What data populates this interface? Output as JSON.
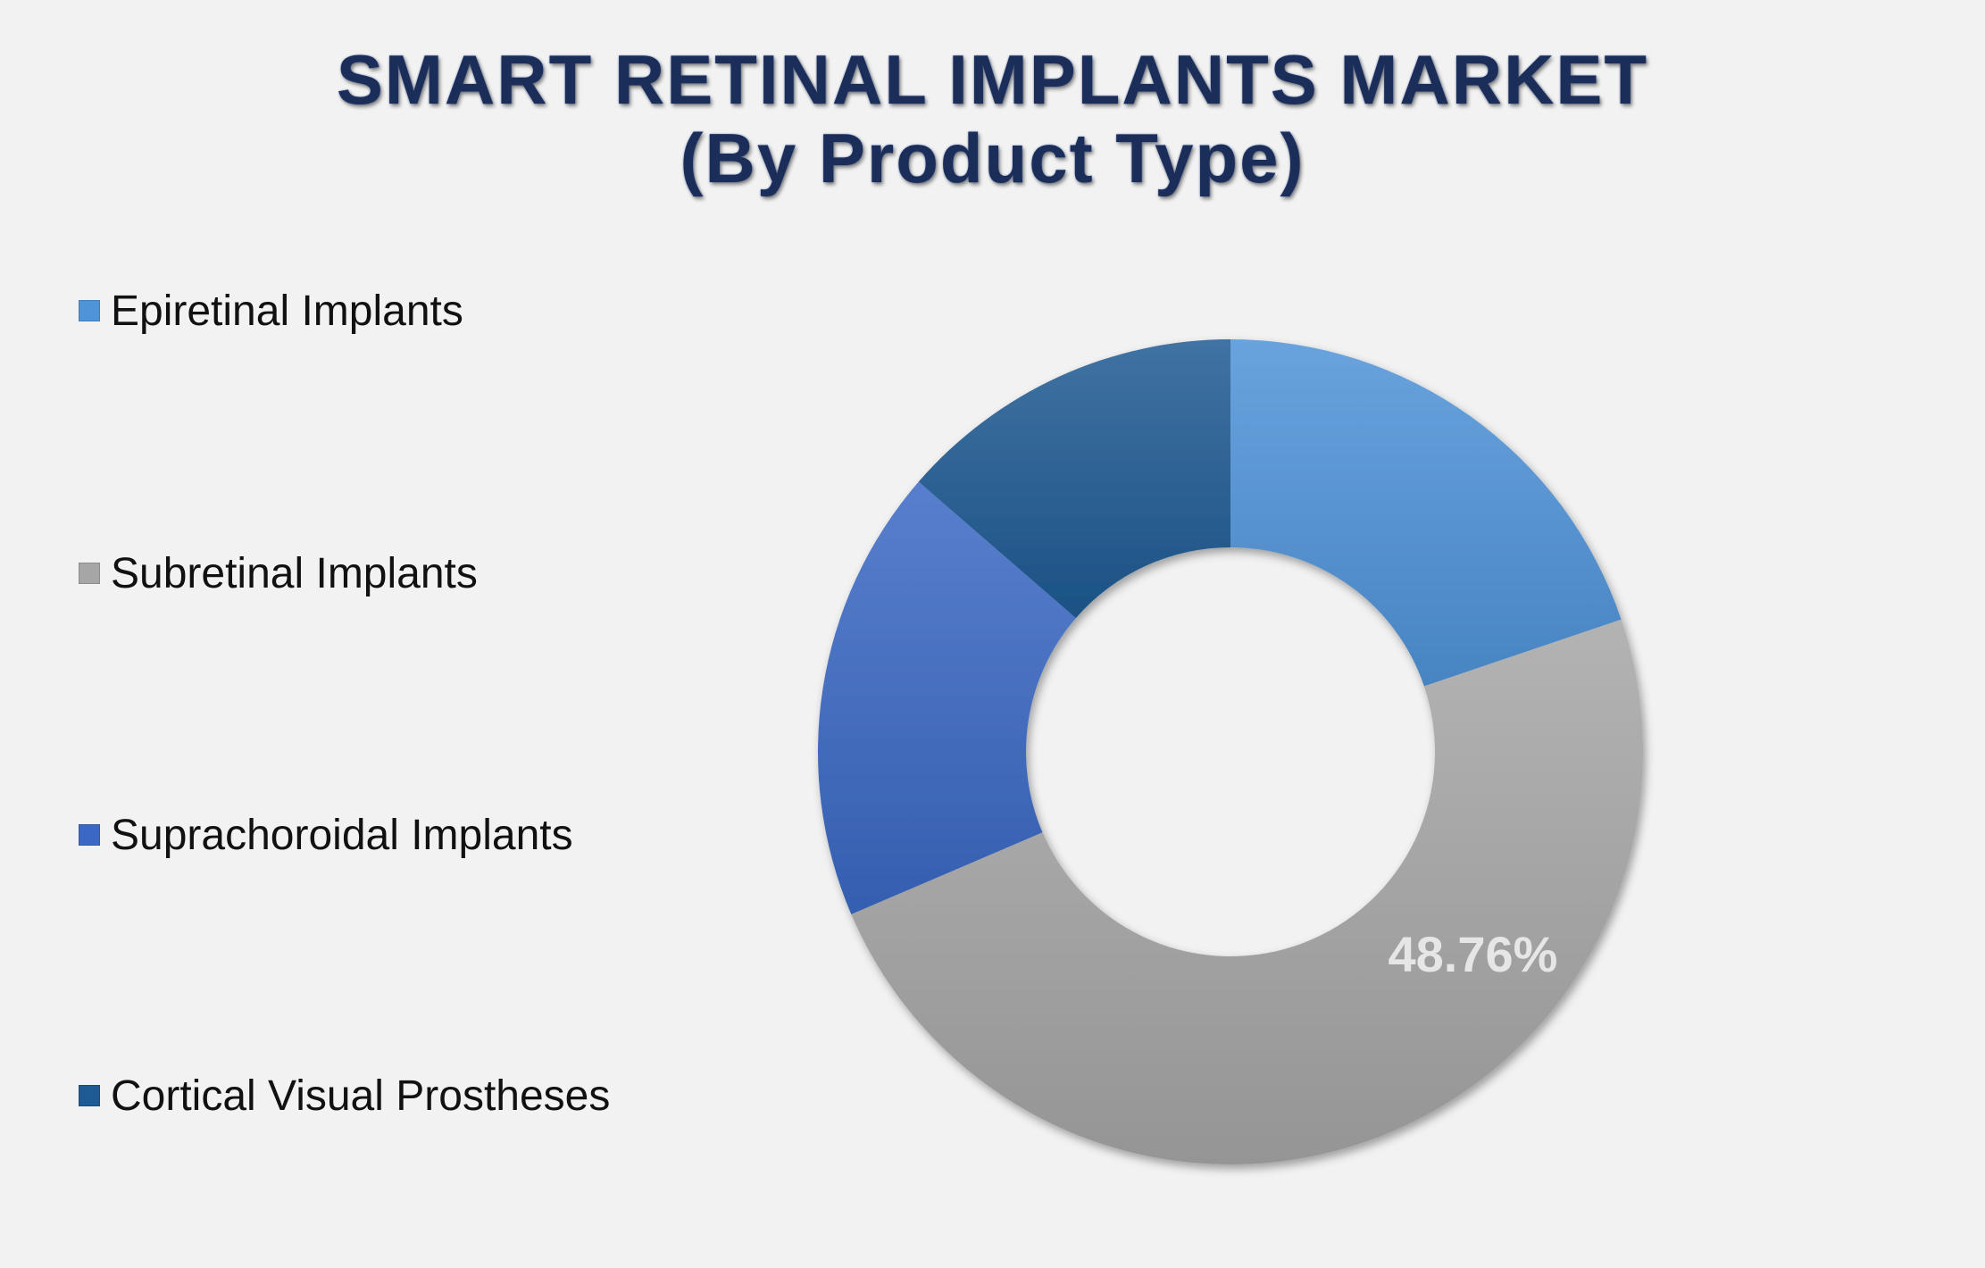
{
  "title": {
    "line1": "SMART RETINAL IMPLANTS MARKET",
    "line2": "(By Product Type)"
  },
  "chart_data": {
    "type": "pie",
    "style": "donut",
    "categories": [
      "Epiretinal Implants",
      "Subretinal Implants",
      "Suprachoroidal Implants",
      "Cortical Visual Prostheses"
    ],
    "values": [
      19.8,
      48.76,
      17.8,
      13.64
    ],
    "unit": "%",
    "colors": [
      "#4f93d8",
      "#a6a6a6",
      "#3b68c4",
      "#1e5a93"
    ],
    "data_labels": [
      {
        "category": "Subretinal Implants",
        "text": "48.76%"
      }
    ],
    "legend_position": "left",
    "start_angle_deg": 0,
    "direction": "clockwise"
  }
}
